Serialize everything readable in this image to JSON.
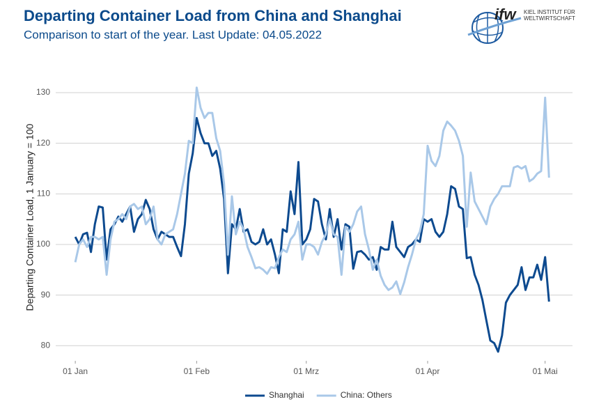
{
  "logo": {
    "mark": "ifw",
    "line1": "KIEL INSTITUT FÜR",
    "line2": "WELTWIRTSCHAFT"
  },
  "chart_data": {
    "type": "line",
    "title": "Departing Container Load from China and Shanghai",
    "subtitle": "Comparison to start of the year. Last Update: 04.05.2022",
    "y_label": "Departing Container Load, 1 January = 100",
    "x": [
      0,
      1,
      2,
      3,
      4,
      5,
      6,
      7,
      8,
      9,
      10,
      11,
      12,
      13,
      14,
      15,
      16,
      17,
      18,
      19,
      20,
      21,
      22,
      23,
      24,
      25,
      26,
      27,
      28,
      29,
      30,
      31,
      32,
      33,
      34,
      35,
      36,
      37,
      38,
      39,
      40,
      41,
      42,
      43,
      44,
      45,
      46,
      47,
      48,
      49,
      50,
      51,
      52,
      53,
      54,
      55,
      56,
      57,
      58,
      59,
      60,
      61,
      62,
      63,
      64,
      65,
      66,
      67,
      68,
      69,
      70,
      71,
      72,
      73,
      74,
      75,
      76,
      77,
      78,
      79,
      80,
      81,
      82,
      83,
      84,
      85,
      86,
      87,
      88,
      89,
      90,
      91,
      92,
      93,
      94,
      95,
      96,
      97,
      98,
      99,
      100,
      101,
      102,
      103,
      104,
      105,
      106,
      107,
      108,
      109,
      110,
      111,
      112,
      113,
      114,
      115,
      116,
      117,
      118,
      119,
      120,
      121
    ],
    "series": [
      {
        "name": "Shanghai",
        "color": "#0d4a8f",
        "values": [
          101.5,
          100,
          102,
          102.3,
          98.5,
          104,
          107.5,
          107.3,
          97,
          103,
          104,
          105.5,
          104.5,
          106,
          107.5,
          102.5,
          105,
          106,
          108.8,
          107,
          103,
          101,
          102.5,
          102,
          101.5,
          101.5,
          99.5,
          97.7,
          104,
          114,
          118,
          125,
          122,
          120,
          120,
          117.5,
          118.5,
          115,
          109,
          94.3,
          104,
          103,
          107,
          102.5,
          103,
          100.5,
          100,
          100.5,
          103,
          100,
          101,
          98,
          94.3,
          103,
          102.5,
          110.5,
          106,
          116.3,
          100,
          101,
          103,
          109,
          108.5,
          104,
          101,
          107,
          101.5,
          105,
          99,
          104,
          103.5,
          95.2,
          98.5,
          98.7,
          98,
          97,
          97.5,
          95,
          99.5,
          99,
          99,
          104.5,
          99.5,
          98.5,
          97.5,
          99.5,
          100,
          101,
          100.5,
          105,
          104.5,
          105,
          102.5,
          101.5,
          102.5,
          106,
          111.5,
          111,
          107.5,
          107,
          97.3,
          97.5,
          94,
          92,
          89,
          85,
          81,
          80.5,
          78.8,
          82,
          88.5,
          90,
          91,
          92,
          95.5,
          91,
          93.5,
          93.5,
          96,
          93,
          97.5,
          88.7
        ]
      },
      {
        "name": "China: Others",
        "color": "#a9c8e8",
        "values": [
          96.5,
          100,
          101,
          99.5,
          101.5,
          101.5,
          101,
          101.5,
          94,
          101,
          104.5,
          105,
          106,
          105,
          107.5,
          108,
          107,
          107.5,
          104,
          105,
          107.5,
          101,
          100,
          102,
          102.5,
          103,
          106,
          110,
          114,
          120.5,
          120,
          131,
          127,
          125,
          126,
          126,
          121,
          118.5,
          112,
          98,
          109.5,
          102,
          104.5,
          103,
          99.5,
          97.5,
          95.3,
          95.5,
          95,
          94.2,
          95.5,
          95.3,
          97.5,
          99,
          98.5,
          101,
          102,
          104.5,
          97,
          100,
          100,
          99.5,
          98,
          100.5,
          102,
          105,
          102,
          101.5,
          94,
          103.5,
          102.5,
          104,
          106.5,
          107.5,
          102,
          99,
          95,
          97,
          93.8,
          92,
          91,
          91.5,
          92.7,
          90.2,
          92.5,
          95.5,
          98,
          101,
          102.5,
          106,
          119.5,
          116.5,
          115.5,
          117.5,
          122.5,
          124.3,
          123.5,
          122.5,
          120.5,
          117.5,
          103.5,
          114.2,
          108.5,
          107,
          105.5,
          104,
          107.5,
          109,
          110,
          111.5,
          111.5,
          111.5,
          115.2,
          115.5,
          115,
          115.5,
          112.5,
          113,
          114,
          114.5,
          129,
          113.2
        ]
      }
    ],
    "xlim": [
      -5,
      127
    ],
    "xticks": [
      {
        "value": 0,
        "label": "01 Jan"
      },
      {
        "value": 31,
        "label": "01 Feb"
      },
      {
        "value": 59,
        "label": "01 Mrz"
      },
      {
        "value": 90,
        "label": "01 Apr"
      },
      {
        "value": 120,
        "label": "01 Mai"
      }
    ],
    "ylim": [
      77,
      134
    ],
    "yticks": [
      80,
      90,
      100,
      110,
      120,
      130
    ],
    "grid": true,
    "legend": "bottom"
  }
}
